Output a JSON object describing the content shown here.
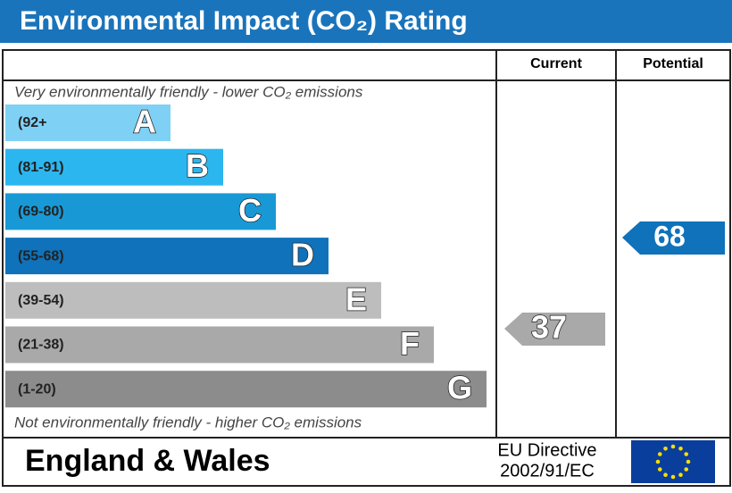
{
  "header": {
    "title": "Environmental Impact (CO₂) Rating"
  },
  "columns": [
    "Current",
    "Potential"
  ],
  "top_note": "Very environmentally friendly - lower CO₂ emissions",
  "bottom_note": "Not environmentally friendly - higher CO₂ emissions",
  "bands": [
    {
      "range": "(92+",
      "letter": "A",
      "color": "#7fd0f5"
    },
    {
      "range": "(81-91)",
      "letter": "B",
      "color": "#2cb6f0"
    },
    {
      "range": "(69-80)",
      "letter": "C",
      "color": "#1899d6"
    },
    {
      "range": "(55-68)",
      "letter": "D",
      "color": "#0f72ba"
    },
    {
      "range": "(39-54)",
      "letter": "E",
      "color": "#bdbdbd"
    },
    {
      "range": "(21-38)",
      "letter": "F",
      "color": "#a9a9a9"
    },
    {
      "range": "(1-20)",
      "letter": "G",
      "color": "#8c8c8c"
    }
  ],
  "current": {
    "value": 37,
    "color": "#a9a9a9"
  },
  "potential": {
    "value": 68,
    "color": "#0f72ba"
  },
  "footer": {
    "region": "England & Wales",
    "directive": [
      "EU Directive",
      "2002/91/EC"
    ]
  }
}
